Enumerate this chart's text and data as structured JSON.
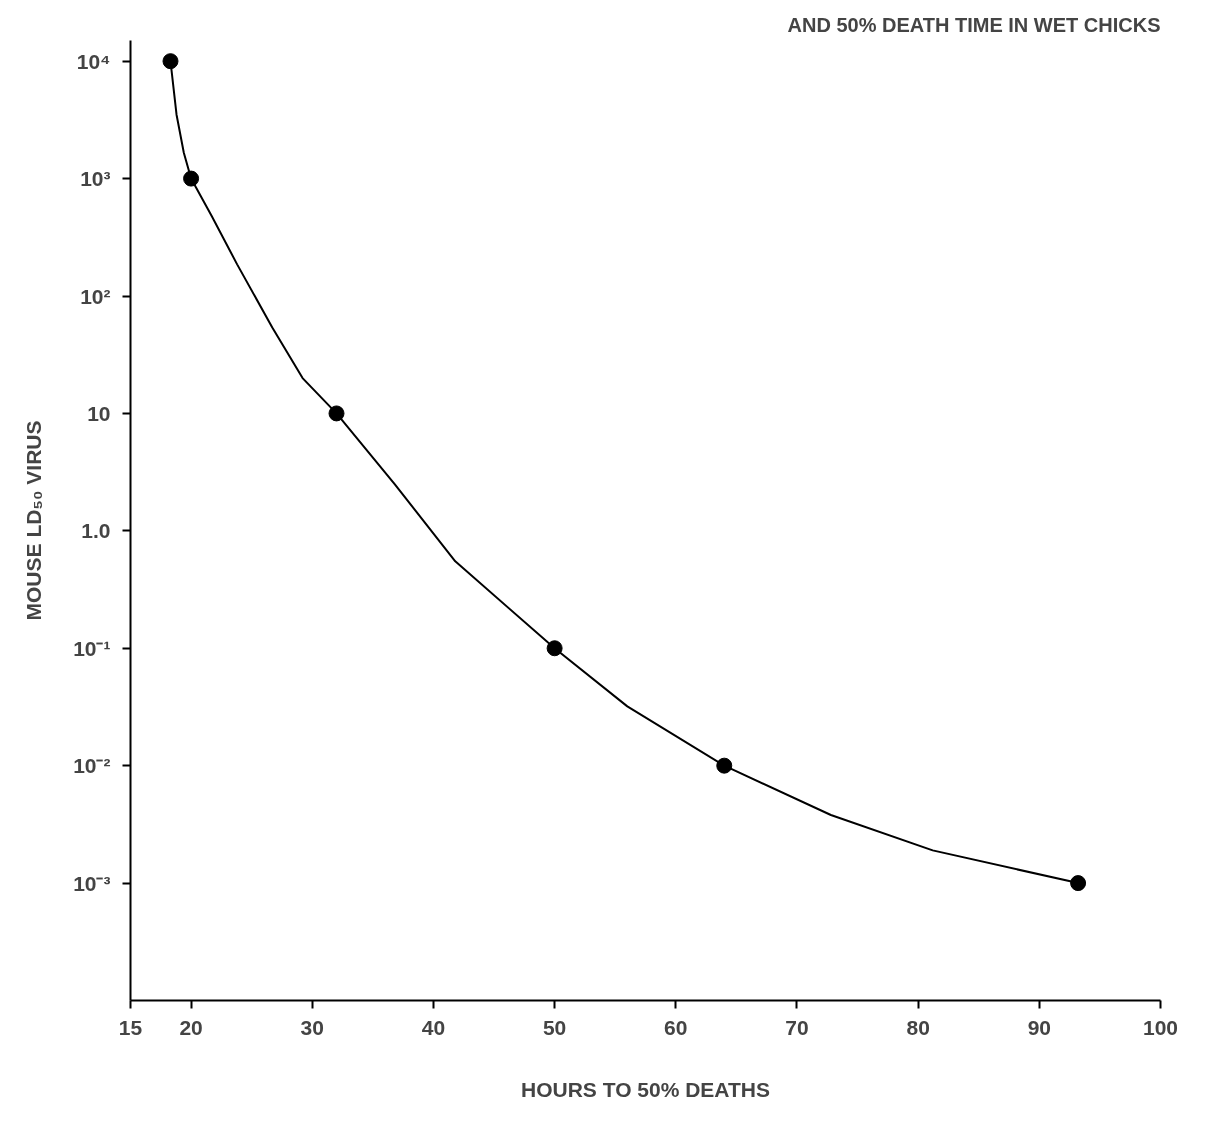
{
  "chart_data": {
    "type": "line",
    "title": "AND 50% DEATH TIME IN WET CHICKS",
    "xlabel": "HOURS TO 50% DEATHS",
    "ylabel": "MOUSE LD₅₀ VIRUS",
    "series": [
      {
        "color": "#000000",
        "marker": "none",
        "x": [
          18.3,
          18.8,
          19.4,
          20,
          21.7,
          23.8,
          26.7,
          29.2,
          32,
          36.8,
          41.8,
          50,
          56,
          64,
          72.8,
          81.2,
          93.2
        ],
        "values": [
          10000,
          3500,
          1660,
          1000,
          480,
          186,
          54,
          20,
          10,
          2.5,
          0.55,
          0.1,
          0.032,
          0.01,
          0.0038,
          0.0019,
          0.001
        ]
      },
      {
        "type": "scatter",
        "color": "#000000",
        "marker": "circle",
        "x": [
          18.3,
          20,
          32,
          50,
          64,
          93.2
        ],
        "values": [
          10000,
          1000,
          10,
          0.1,
          0.01,
          0.001
        ]
      }
    ],
    "log": true,
    "line_style": "solid",
    "grid": false,
    "xlim": [
      15,
      100
    ],
    "xticks": [
      15,
      20,
      30,
      40,
      50,
      60,
      70,
      80,
      90,
      100
    ],
    "ylim": [
      0.0001,
      15000
    ],
    "yticks": [
      {
        "value": 0.001,
        "label": "10⁻³"
      },
      {
        "value": 0.01,
        "label": "10⁻²"
      },
      {
        "value": 0.1,
        "label": "10⁻¹"
      },
      {
        "value": 1,
        "label": "1.0"
      },
      {
        "value": 10,
        "label": "10"
      },
      {
        "value": 100,
        "label": "10²"
      },
      {
        "value": 1000,
        "label": "10³"
      },
      {
        "value": 10000,
        "label": "10⁴"
      }
    ]
  }
}
